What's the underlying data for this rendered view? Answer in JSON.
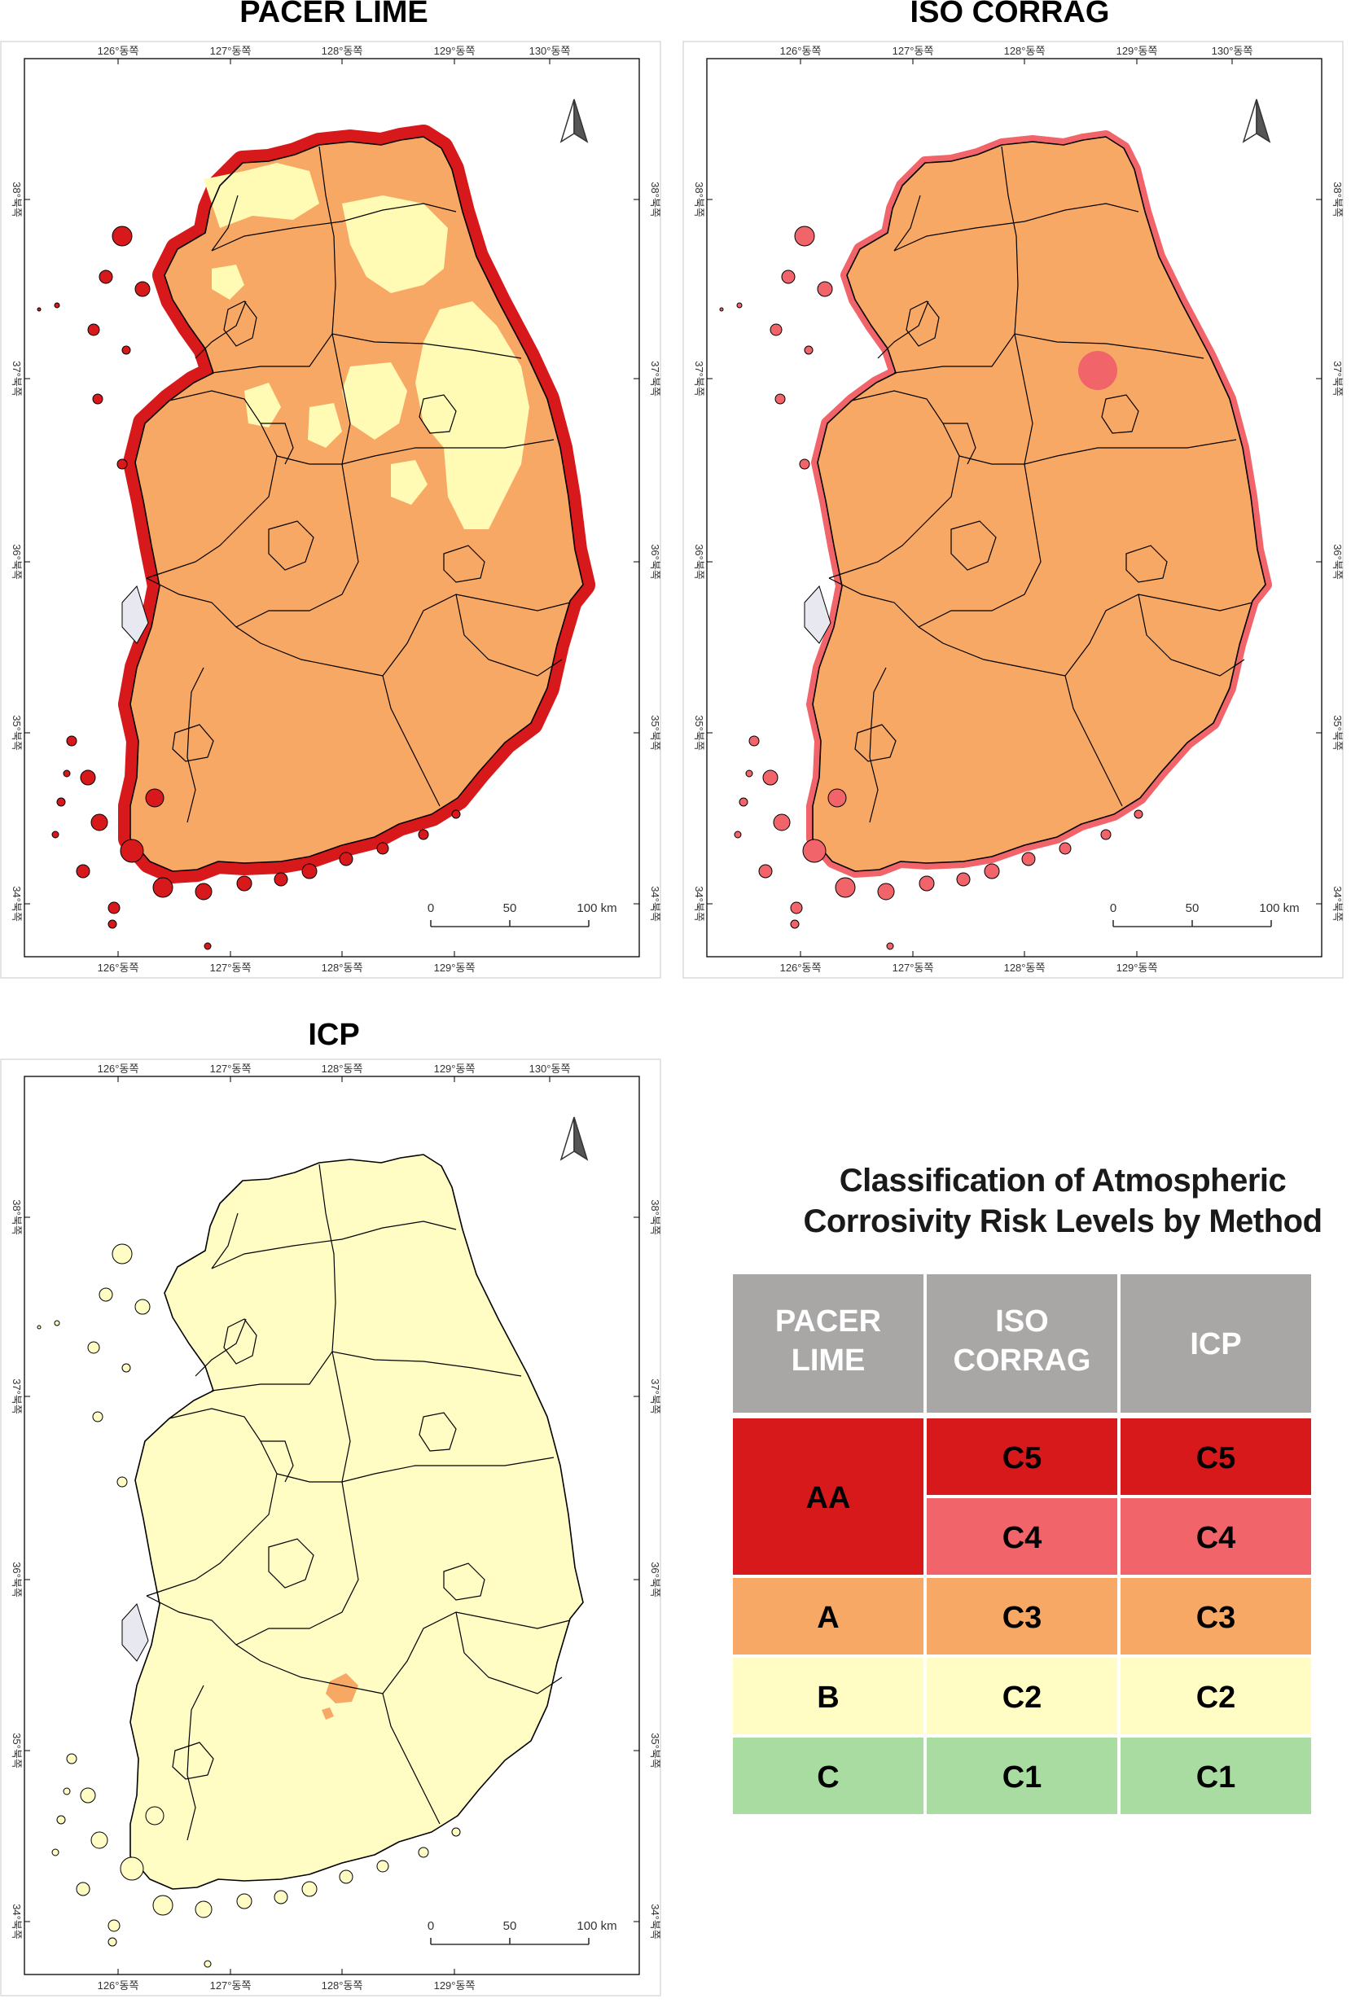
{
  "maps": [
    {
      "id": "pacer",
      "title": "PACER LIME",
      "base": "#F8A865",
      "coast": "#D7191C",
      "inland": "#FFFAB4",
      "circle": null,
      "extra": null
    },
    {
      "id": "iso",
      "title": "ISO CORRAG",
      "base": "#F8A865",
      "coast": "#F0646A",
      "inland": null,
      "circle": "#F0646A",
      "extra": null
    },
    {
      "id": "icp",
      "title": "ICP",
      "base": "#FFFCC4",
      "coast": null,
      "inland": null,
      "circle": null,
      "extra": "#F8A865"
    }
  ],
  "axis": {
    "lon_labels": [
      "126°동쪽",
      "127°동쪽",
      "128°동쪽",
      "129°동쪽",
      "130°동쪽"
    ],
    "lat_labels": [
      "38°북쪽",
      "37°북쪽",
      "36°북쪽",
      "35°북쪽",
      "34°북쪽"
    ]
  },
  "scale": {
    "labels": [
      "0",
      "50",
      "100 km"
    ]
  },
  "legend": {
    "title_line1": "Classification of Atmospheric",
    "title_line2": "Corrosivity Risk Levels by Method",
    "headers": [
      "PACER\nLIME",
      "ISO\nCORRAG",
      "ICP"
    ],
    "rows": [
      {
        "pacer": "AA",
        "iso": "C5",
        "icp": "C5",
        "color": "#D7191C",
        "pacer_color": "#D7191C"
      },
      {
        "pacer": "AA",
        "iso": "C4",
        "icp": "C4",
        "color": "#F0646A",
        "pacer_color": "#D7191C"
      },
      {
        "pacer": "A",
        "iso": "C3",
        "icp": "C3",
        "color": "#F8A865",
        "pacer_color": "#F8A865"
      },
      {
        "pacer": "B",
        "iso": "C2",
        "icp": "C2",
        "color": "#FFFCC4",
        "pacer_color": "#FFFCC4"
      },
      {
        "pacer": "C",
        "iso": "C1",
        "icp": "C1",
        "color": "#A8DCA0",
        "pacer_color": "#A8DCA0"
      }
    ],
    "header_color": "#A9A6A6"
  }
}
